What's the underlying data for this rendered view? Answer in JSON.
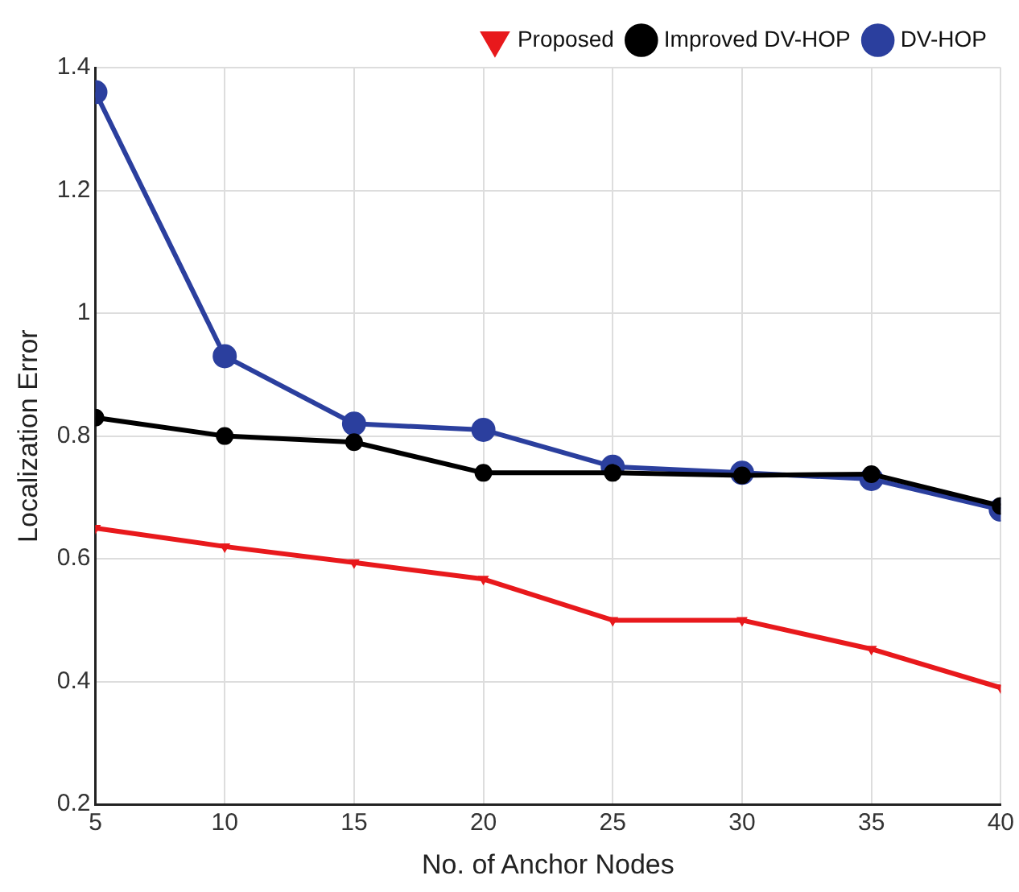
{
  "chart_data": {
    "type": "line",
    "xlabel": "No. of Anchor Nodes",
    "ylabel": "Localization Error",
    "x": [
      5,
      10,
      15,
      20,
      25,
      30,
      35,
      40
    ],
    "xlim": [
      5,
      40
    ],
    "xticks": [
      5,
      10,
      15,
      20,
      25,
      30,
      35,
      40
    ],
    "ylim": [
      0.2,
      1.4
    ],
    "yticks": [
      0.2,
      0.4,
      0.6,
      0.8,
      1,
      1.2,
      1.4
    ],
    "grid": true,
    "legend": "top right",
    "line_style": "solid",
    "series": [
      {
        "name": "DV-HOP",
        "color": "#2b3f9e",
        "marker": "circle",
        "values": [
          1.36,
          0.93,
          0.82,
          0.81,
          0.75,
          0.74,
          0.73,
          0.68
        ]
      },
      {
        "name": "Improved DV-HOP",
        "color": "#000000",
        "marker": "circle",
        "values": [
          0.83,
          0.8,
          0.79,
          0.74,
          0.74,
          0.736,
          0.738,
          0.686
        ]
      },
      {
        "name": "Proposed",
        "color": "#e8191c",
        "marker": "triangle",
        "values": [
          0.65,
          0.62,
          0.594,
          0.567,
          0.5,
          0.5,
          0.453,
          0.39
        ]
      }
    ]
  }
}
